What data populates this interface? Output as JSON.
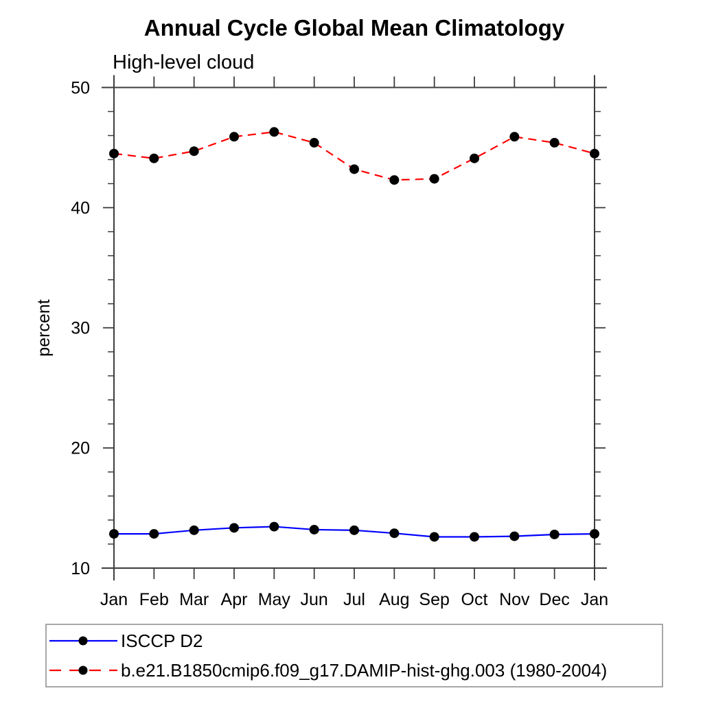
{
  "chart_data": {
    "type": "line",
    "title": "Annual Cycle Global Mean Climatology",
    "subtitle": "High-level cloud",
    "ylabel": "percent",
    "xlabel": "",
    "categories": [
      "Jan",
      "Feb",
      "Mar",
      "Apr",
      "May",
      "Jun",
      "Jul",
      "Aug",
      "Sep",
      "Oct",
      "Nov",
      "Dec",
      "Jan"
    ],
    "ylim": [
      10,
      50
    ],
    "y_major_ticks": [
      10,
      20,
      30,
      40,
      50
    ],
    "y_minor_step": 2,
    "grid": false,
    "legend_position": "bottom-left-box",
    "axis_color": "#3c3c3c",
    "marker_color": "#000000",
    "series": [
      {
        "name": "ISCCP D2",
        "color": "#0000ff",
        "line_style": "solid",
        "marker": "filled-circle",
        "values": [
          12.85,
          12.85,
          13.15,
          13.35,
          13.45,
          13.2,
          13.15,
          12.9,
          12.6,
          12.6,
          12.65,
          12.8,
          12.85
        ]
      },
      {
        "name": "b.e21.B1850cmip6.f09_g17.DAMIP-hist-ghg.003 (1980-2004)",
        "color": "#ff0000",
        "line_style": "dashed",
        "marker": "filled-circle",
        "values": [
          44.5,
          44.1,
          44.7,
          45.9,
          46.3,
          45.4,
          43.2,
          42.3,
          42.4,
          44.1,
          45.9,
          45.4,
          44.5
        ]
      }
    ]
  }
}
